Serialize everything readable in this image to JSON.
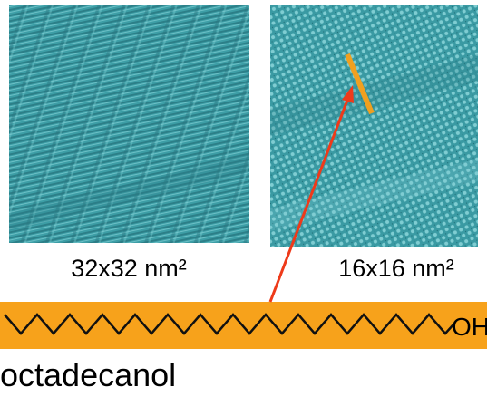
{
  "figure": {
    "left_label": "32x32 nm²",
    "right_label": "16x16 nm²",
    "group": "OH",
    "molecule": "octadecanol"
  }
}
